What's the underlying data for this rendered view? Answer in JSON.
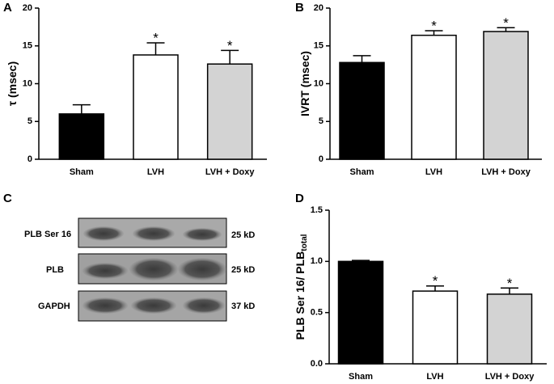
{
  "chart_data": [
    {
      "type": "bar",
      "panel": "A",
      "ylabel": "τ (msec)",
      "categories": [
        "Sham",
        "LVH",
        "LVH + Doxy"
      ],
      "values": [
        6.0,
        13.8,
        12.6
      ],
      "errors": [
        1.2,
        1.6,
        1.8
      ],
      "significance": [
        null,
        "*",
        "*"
      ],
      "colors": [
        "#000000",
        "#ffffff",
        "#d3d3d3"
      ],
      "ylim": [
        0,
        20
      ],
      "yticks": [
        0,
        5,
        10,
        15,
        20
      ]
    },
    {
      "type": "bar",
      "panel": "B",
      "ylabel": "IVRT (msec)",
      "categories": [
        "Sham",
        "LVH",
        "LVH + Doxy"
      ],
      "values": [
        12.8,
        16.4,
        16.9
      ],
      "errors": [
        0.9,
        0.6,
        0.5
      ],
      "significance": [
        null,
        "*",
        "*"
      ],
      "colors": [
        "#000000",
        "#ffffff",
        "#d3d3d3"
      ],
      "ylim": [
        0,
        20
      ],
      "yticks": [
        0,
        5,
        10,
        15,
        20
      ]
    },
    {
      "type": "bar",
      "panel": "D",
      "ylabel": "PLB Ser 16/ PLB",
      "ylabel_sub": "total",
      "categories": [
        "Sham",
        "LVH",
        "LVH + Doxy"
      ],
      "values": [
        1.0,
        0.71,
        0.68
      ],
      "errors": [
        0.01,
        0.05,
        0.06
      ],
      "significance": [
        null,
        "*",
        "*"
      ],
      "colors": [
        "#000000",
        "#ffffff",
        "#d3d3d3"
      ],
      "ylim": [
        0,
        1.5
      ],
      "yticks": [
        {
          "value": 0,
          "label": "0.0"
        },
        0.5,
        {
          "value": 1,
          "label": "1.0"
        },
        1.5
      ]
    }
  ],
  "blot": {
    "panel": "C",
    "rows": [
      {
        "name": "PLB Ser 16",
        "size": "25 kD"
      },
      {
        "name": "PLB",
        "size": "25 kD"
      },
      {
        "name": "GAPDH",
        "size": "37 kD"
      }
    ]
  }
}
